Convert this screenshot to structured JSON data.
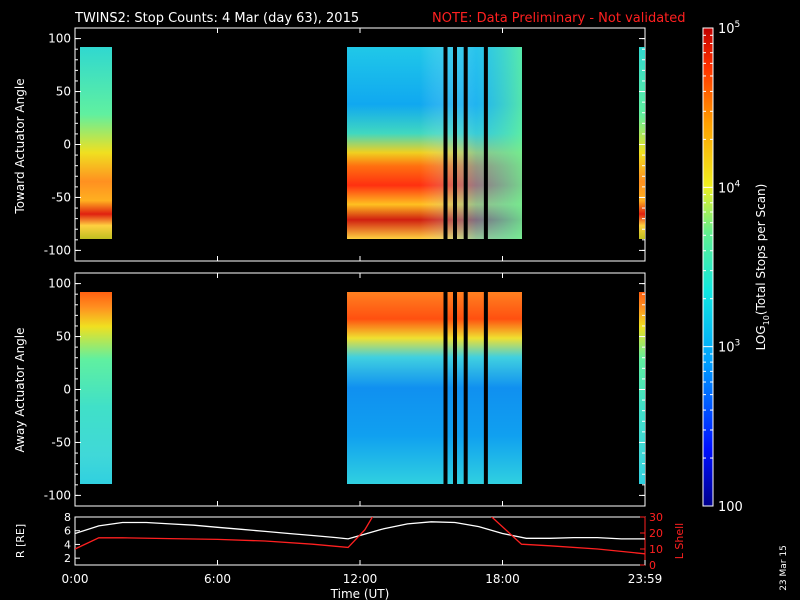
{
  "header": {
    "title": "TWINS2: Stop Counts:  4 Mar (day  63), 2015",
    "note": "NOTE: Data Preliminary - Not validated",
    "note_color": "#ff2020"
  },
  "stamp": "23 Mar 15",
  "chart_data": [
    {
      "type": "heatmap",
      "panel": "toward",
      "ylabel": "Toward Actuator Angle",
      "ylim": [
        -110,
        110
      ],
      "yticks": [
        "100",
        "50",
        "0",
        "-50",
        "-100"
      ],
      "xlim_hours": [
        0,
        24
      ],
      "scale": "log",
      "data_intervals_hours": [
        [
          0.0,
          1.1
        ],
        [
          11.5,
          18.9
        ],
        [
          23.8,
          24.0
        ]
      ],
      "data_gaps_hours": [
        15.6,
        16.0,
        16.45,
        17.3
      ],
      "angle_range": [
        -88,
        90
      ]
    },
    {
      "type": "heatmap",
      "panel": "away",
      "ylabel": "Away Actuator Angle",
      "ylim": [
        -110,
        110
      ],
      "yticks": [
        "100",
        "50",
        "0",
        "-50",
        "-100"
      ],
      "xlim_hours": [
        0,
        24
      ],
      "scale": "log",
      "data_intervals_hours": [
        [
          0.0,
          1.1
        ],
        [
          11.5,
          18.9
        ],
        [
          23.8,
          24.0
        ]
      ],
      "data_gaps_hours": [
        15.6,
        16.0,
        16.45,
        17.3
      ],
      "angle_range": [
        -88,
        90
      ]
    },
    {
      "type": "line",
      "panel": "orbit",
      "ylabel_left": "R [RE]",
      "ylabel_right": "L Shell",
      "ylim_left": [
        1,
        8
      ],
      "ylim_right": [
        0,
        30
      ],
      "yticks_left": [
        "8",
        "6",
        "4",
        "2"
      ],
      "yticks_right": [
        "30",
        "20",
        "10",
        "0"
      ],
      "right_axis_color": "#ff2020",
      "xlabel": "Time (UT)",
      "xtick_labels": [
        "0:00",
        "6:00",
        "12:00",
        "18:00",
        "23:59"
      ],
      "xtick_hours": [
        0,
        6,
        12,
        18,
        24
      ],
      "series": [
        {
          "name": "R",
          "color": "#ffffff",
          "x": [
            0,
            1,
            2,
            3,
            4,
            5,
            6,
            7,
            8,
            9,
            10,
            11,
            11.5,
            12,
            13,
            14,
            15,
            16,
            17,
            18,
            19,
            20,
            21,
            22,
            23,
            24
          ],
          "y": [
            5.6,
            6.7,
            7.2,
            7.2,
            7.0,
            6.8,
            6.5,
            6.2,
            5.9,
            5.6,
            5.3,
            5.0,
            4.8,
            5.3,
            6.3,
            7.0,
            7.3,
            7.2,
            6.6,
            5.6,
            4.9,
            4.9,
            5.0,
            5.0,
            4.8,
            4.8
          ]
        },
        {
          "name": "L Shell",
          "color": "#ff2020",
          "x": [
            0,
            1,
            2,
            4,
            6,
            8,
            10,
            11.5,
            12.2,
            12.6,
            17.4,
            18.8,
            20,
            22,
            24
          ],
          "y": [
            10,
            17,
            17,
            16.5,
            16,
            15,
            13,
            11,
            22,
            32,
            32,
            13,
            12,
            10,
            7
          ]
        }
      ]
    }
  ],
  "colorbar": {
    "label": "LOG10(Total Stops per Scan)",
    "label_base": "LOG",
    "label_sub": "10",
    "label_rest": "(Total Stops per Scan)",
    "ticks": [
      {
        "base": "10",
        "exp": "5",
        "value": 100000
      },
      {
        "base": "10",
        "exp": "4",
        "value": 10000
      },
      {
        "base": "10",
        "exp": "3",
        "value": 1000
      },
      {
        "base": "100",
        "exp": "",
        "value": 100
      }
    ],
    "range": [
      100,
      100000
    ]
  }
}
